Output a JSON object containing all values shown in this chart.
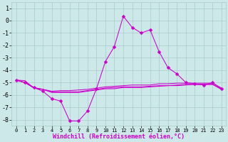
{
  "background_color": "#cce8e8",
  "grid_color": "#aacccc",
  "line_color": "#cc00cc",
  "marker": "D",
  "marker_size": 2.5,
  "xlabel": "Windchill (Refroidissement éolien,°C)",
  "xlabel_fontsize": 6.0,
  "ytick_fontsize": 6.0,
  "xtick_fontsize": 5.0,
  "ylim": [
    -8.5,
    1.5
  ],
  "xlim": [
    -0.5,
    23.5
  ],
  "yticks": [
    1,
    0,
    -1,
    -2,
    -3,
    -4,
    -5,
    -6,
    -7,
    -8
  ],
  "xticks": [
    0,
    1,
    2,
    3,
    4,
    5,
    6,
    7,
    8,
    9,
    10,
    11,
    12,
    13,
    14,
    15,
    16,
    17,
    18,
    19,
    20,
    21,
    22,
    23
  ],
  "curve1_x": [
    0,
    1,
    2,
    3,
    4,
    5,
    6,
    7,
    8,
    9,
    10,
    11,
    12,
    13,
    14,
    15,
    16,
    17,
    18,
    19,
    20,
    21,
    22,
    23
  ],
  "curve1_y": [
    -4.8,
    -5.0,
    -5.4,
    -5.7,
    -6.3,
    -6.5,
    -8.1,
    -8.1,
    -7.3,
    -5.5,
    -3.3,
    -2.1,
    0.35,
    -0.55,
    -1.0,
    -0.75,
    -2.5,
    -3.8,
    -4.3,
    -5.0,
    -5.1,
    -5.2,
    -5.0,
    -5.5
  ],
  "curve2_x": [
    0,
    1,
    2,
    3,
    4,
    5,
    6,
    7,
    8,
    9,
    10,
    11,
    12,
    13,
    14,
    15,
    16,
    17,
    18,
    19,
    20,
    21,
    22,
    23
  ],
  "curve2_y": [
    -4.8,
    -5.0,
    -5.4,
    -5.55,
    -5.7,
    -5.65,
    -5.65,
    -5.6,
    -5.55,
    -5.45,
    -5.35,
    -5.3,
    -5.25,
    -5.2,
    -5.2,
    -5.2,
    -5.1,
    -5.1,
    -5.05,
    -5.05,
    -5.05,
    -5.05,
    -5.05,
    -5.45
  ],
  "curve3_x": [
    0,
    1,
    2,
    3,
    4,
    5,
    6,
    7,
    8,
    9,
    10,
    11,
    12,
    13,
    14,
    15,
    16,
    17,
    18,
    19,
    20,
    21,
    22,
    23
  ],
  "curve3_y": [
    -4.8,
    -4.85,
    -5.45,
    -5.55,
    -5.75,
    -5.75,
    -5.75,
    -5.75,
    -5.65,
    -5.55,
    -5.45,
    -5.4,
    -5.35,
    -5.35,
    -5.35,
    -5.3,
    -5.25,
    -5.25,
    -5.2,
    -5.15,
    -5.15,
    -5.15,
    -5.15,
    -5.55
  ],
  "curve4_x": [
    0,
    1,
    2,
    3,
    4,
    5,
    6,
    7,
    8,
    9,
    10,
    11,
    12,
    13,
    14,
    15,
    16,
    17,
    18,
    19,
    20,
    21,
    22,
    23
  ],
  "curve4_y": [
    -4.8,
    -5.0,
    -5.45,
    -5.55,
    -5.8,
    -5.8,
    -5.8,
    -5.8,
    -5.7,
    -5.6,
    -5.5,
    -5.5,
    -5.4,
    -5.4,
    -5.4,
    -5.35,
    -5.3,
    -5.25,
    -5.25,
    -5.2,
    -5.15,
    -5.15,
    -5.15,
    -5.55
  ]
}
